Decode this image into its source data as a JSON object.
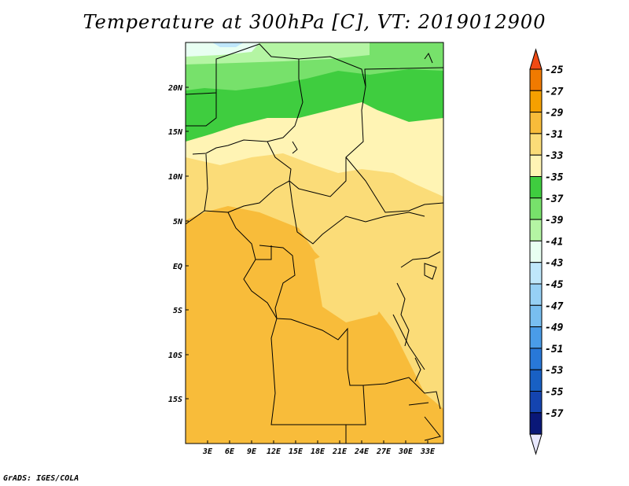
{
  "title": "Temperature at 300hPa [C], VT: 2019012900",
  "footer": "GrADS: IGES/COLA",
  "map": {
    "lat_labels": [
      "20N",
      "15N",
      "10N",
      "5N",
      "EQ",
      "5S",
      "10S",
      "15S"
    ],
    "lon_labels": [
      "3E",
      "6E",
      "9E",
      "12E",
      "15E",
      "18E",
      "21E",
      "24E",
      "27E",
      "30E",
      "33E"
    ]
  },
  "colorbar": {
    "labels": [
      "-25",
      "-27",
      "-29",
      "-31",
      "-33",
      "-35",
      "-37",
      "-39",
      "-41",
      "-43",
      "-45",
      "-47",
      "-49",
      "-51",
      "-53",
      "-55",
      "-57"
    ],
    "colors": [
      "#f04a14",
      "#f07a00",
      "#f5a000",
      "#f8bc3a",
      "#fbdc78",
      "#fff4b4",
      "#3fcd3f",
      "#77e16b",
      "#b4f5a3",
      "#e8fff2",
      "#bfe7fb",
      "#96d0f5",
      "#78bef0",
      "#4a9ce8",
      "#2878d8",
      "#1860c4",
      "#1444b0",
      "#0a1878",
      "#e8e8ff"
    ]
  }
}
